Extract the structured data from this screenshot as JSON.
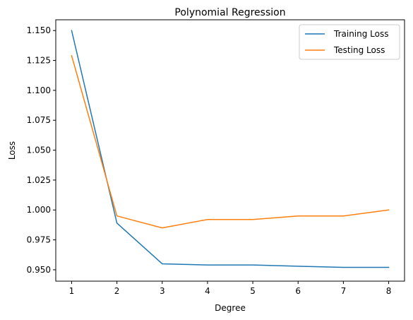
{
  "chart_data": {
    "type": "line",
    "title": "Polynomial Regression",
    "xlabel": "Degree",
    "ylabel": "Loss",
    "x": [
      1,
      2,
      3,
      4,
      5,
      6,
      7,
      8
    ],
    "xlim": [
      0.65,
      8.35
    ],
    "ylim": [
      0.9405,
      1.159
    ],
    "xticks": [
      1,
      2,
      3,
      4,
      5,
      6,
      7,
      8
    ],
    "yticks": [
      0.95,
      0.975,
      1.0,
      1.025,
      1.05,
      1.075,
      1.1,
      1.125,
      1.15
    ],
    "ytick_labels": [
      "0.950",
      "0.975",
      "1.000",
      "1.025",
      "1.050",
      "1.075",
      "1.100",
      "1.125",
      "1.150"
    ],
    "grid": false,
    "legend_position": "top-right",
    "series": [
      {
        "name": "Training Loss",
        "color": "#1f77b4",
        "values": [
          1.15,
          0.989,
          0.955,
          0.954,
          0.954,
          0.953,
          0.952,
          0.952
        ]
      },
      {
        "name": "Testing Loss",
        "color": "#ff7f0e",
        "values": [
          1.129,
          0.995,
          0.985,
          0.992,
          0.992,
          0.995,
          0.995,
          1.0
        ]
      }
    ]
  }
}
